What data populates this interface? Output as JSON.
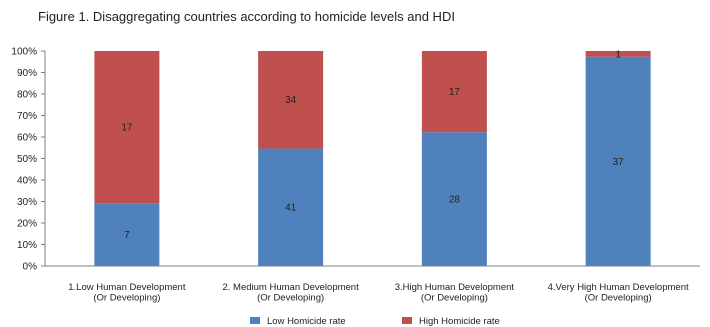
{
  "chart_data": {
    "type": "bar",
    "stacked": "percent",
    "title": "Figure 1. Disaggregating countries according to homicide levels and HDI",
    "categories": [
      [
        "1.Low Human Development",
        "(Or Developing)"
      ],
      [
        "2. Medium Human Development",
        "(Or Developing)"
      ],
      [
        "3.High Human Development",
        "(Or Developing)"
      ],
      [
        "4.Very High Human Development",
        "(Or Developing)"
      ]
    ],
    "series": [
      {
        "name": "Low Homicide rate",
        "values": [
          7,
          41,
          28,
          37
        ],
        "color": "#4f81bd"
      },
      {
        "name": "High Homicide rate",
        "values": [
          17,
          34,
          17,
          1
        ],
        "color": "#c0504d"
      }
    ],
    "ylim": [
      0,
      100
    ],
    "yticks": [
      "0%",
      "10%",
      "20%",
      "30%",
      "40%",
      "50%",
      "60%",
      "70%",
      "80%",
      "90%",
      "100%"
    ],
    "xlabel": "",
    "ylabel": "",
    "legend_position": "bottom",
    "grid": false
  }
}
